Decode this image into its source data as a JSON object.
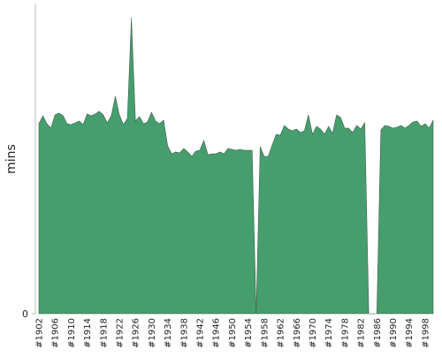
{
  "chart_data": {
    "type": "area",
    "y_label": "mins",
    "color": "#469e6e",
    "categories": [
      "#1902",
      null,
      null,
      null,
      "#1906",
      null,
      null,
      null,
      "#1910",
      null,
      null,
      null,
      "#1914",
      null,
      null,
      null,
      "#1918",
      null,
      null,
      null,
      "#1922",
      null,
      null,
      null,
      "#1926",
      null,
      null,
      null,
      "#1930",
      null,
      null,
      null,
      "#1934",
      null,
      null,
      null,
      "#1938",
      null,
      null,
      null,
      "#1942",
      null,
      null,
      null,
      "#1946",
      null,
      null,
      null,
      "#1950",
      null,
      null,
      null,
      "#1954",
      null,
      null,
      null,
      "#1958",
      null,
      null,
      null,
      "#1962",
      null,
      null,
      null,
      "#1966",
      null,
      null,
      null,
      "#1970",
      null,
      null,
      null,
      "#1974",
      null,
      null,
      null,
      "#1978",
      null,
      null,
      null,
      "#1982",
      null,
      null,
      null,
      "#1986",
      null,
      null,
      null,
      "#1990",
      null,
      null,
      null,
      "#1994",
      null,
      null,
      null,
      "#1998",
      null,
      null
    ],
    "values": [
      43,
      44.8,
      43,
      42,
      45,
      45.4,
      44.8,
      43,
      42.8,
      43.2,
      43.6,
      42.8,
      45.2,
      44.8,
      45.2,
      45.8,
      45,
      43.2,
      44.8,
      49.2,
      45,
      42.8,
      44.2,
      67,
      43.6,
      44.6,
      43,
      43.4,
      45.6,
      43.6,
      43,
      43.8,
      38,
      36.2,
      36.6,
      36.4,
      37.4,
      36.6,
      35.6,
      36.8,
      37,
      39.2,
      36,
      36.2,
      36.2,
      36.6,
      36.2,
      37.4,
      37.2,
      37,
      37.2,
      37,
      37,
      37,
      0,
      37.8,
      35.6,
      35.6,
      38.2,
      40.6,
      40.4,
      42.6,
      41.8,
      41.4,
      41.8,
      41,
      41.4,
      45,
      40.6,
      42.4,
      41.8,
      40.6,
      42.4,
      40.8,
      45,
      44.4,
      42,
      42,
      41,
      42.6,
      41.8,
      43.2,
      0,
      0,
      0,
      41.6,
      42.6,
      42.4,
      42,
      42.2,
      42.6,
      42,
      42.6,
      43.4,
      43.6,
      42.4,
      43,
      42,
      43.8
    ],
    "ylim": [
      0,
      70
    ],
    "yticks": [
      0
    ]
  }
}
